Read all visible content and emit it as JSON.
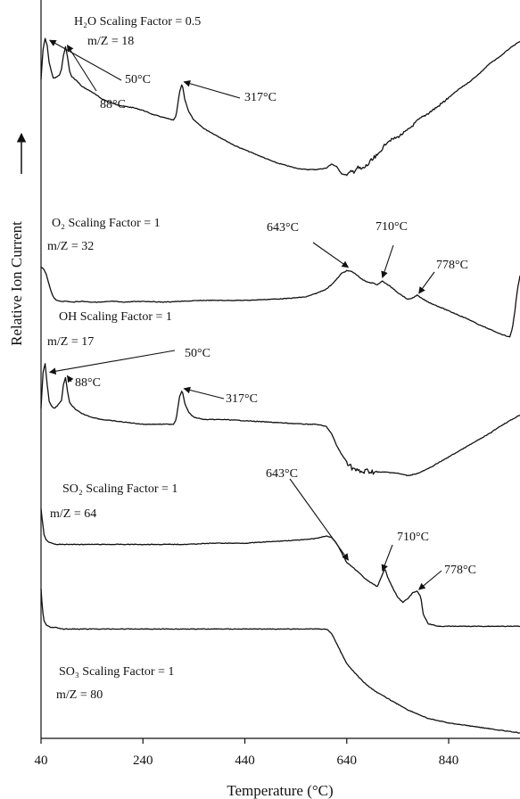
{
  "chart_data": {
    "type": "line",
    "xlabel": "Temperature (°C)",
    "ylabel": "Relative Ion Current",
    "xlim": [
      40,
      980
    ],
    "x_ticks": [
      "40",
      "240",
      "440",
      "640",
      "840"
    ],
    "grid": false,
    "series": [
      {
        "name": "H2O",
        "label_lines": [
          "H₂O Scaling Factor = 0.5",
          "m/Z = 18"
        ],
        "x": [
          40,
          44,
          48,
          52,
          56,
          60,
          64,
          68,
          72,
          76,
          80,
          84,
          88,
          92,
          96,
          100,
          110,
          120,
          140,
          160,
          180,
          200,
          220,
          240,
          260,
          280,
          300,
          305,
          312,
          317,
          322,
          330,
          340,
          360,
          380,
          400,
          420,
          440,
          460,
          480,
          500,
          520,
          540,
          560,
          580,
          600,
          610,
          620,
          630,
          640,
          650,
          660,
          670,
          680,
          700,
          720,
          740,
          760,
          780,
          800,
          820,
          840,
          860,
          880,
          900,
          920,
          940,
          960,
          980
        ],
        "values": [
          0.69,
          0.9,
          0.98,
          0.93,
          0.81,
          0.75,
          0.7,
          0.7,
          0.71,
          0.72,
          0.76,
          0.86,
          0.92,
          0.85,
          0.75,
          0.71,
          0.68,
          0.64,
          0.6,
          0.55,
          0.52,
          0.5,
          0.49,
          0.47,
          0.44,
          0.42,
          0.4,
          0.43,
          0.6,
          0.66,
          0.55,
          0.46,
          0.4,
          0.34,
          0.3,
          0.26,
          0.22,
          0.19,
          0.16,
          0.13,
          0.1,
          0.08,
          0.06,
          0.05,
          0.05,
          0.06,
          0.09,
          0.07,
          0.02,
          0.01,
          0.03,
          0.06,
          0.05,
          0.08,
          0.15,
          0.25,
          0.28,
          0.33,
          0.4,
          0.45,
          0.5,
          0.56,
          0.62,
          0.67,
          0.73,
          0.8,
          0.85,
          0.91,
          0.96
        ]
      },
      {
        "name": "O2",
        "label_lines": [
          "O₂ Scaling Factor = 1",
          "m/Z = 32"
        ],
        "x": [
          40,
          45,
          50,
          55,
          60,
          65,
          70,
          80,
          90,
          100,
          120,
          140,
          160,
          180,
          200,
          240,
          280,
          320,
          360,
          400,
          440,
          480,
          520,
          560,
          580,
          600,
          610,
          620,
          630,
          640,
          650,
          660,
          670,
          680,
          690,
          700,
          705,
          710,
          715,
          720,
          730,
          740,
          750,
          760,
          770,
          778,
          785,
          800,
          820,
          840,
          860,
          880,
          900,
          920,
          940,
          950,
          960,
          965,
          970,
          975,
          980
        ],
        "values": [
          0.8,
          0.78,
          0.72,
          0.62,
          0.52,
          0.45,
          0.42,
          0.41,
          0.41,
          0.4,
          0.41,
          0.4,
          0.4,
          0.41,
          0.4,
          0.41,
          0.4,
          0.41,
          0.42,
          0.42,
          0.42,
          0.43,
          0.44,
          0.46,
          0.5,
          0.55,
          0.6,
          0.66,
          0.73,
          0.76,
          0.75,
          0.71,
          0.66,
          0.63,
          0.62,
          0.6,
          0.62,
          0.64,
          0.62,
          0.6,
          0.56,
          0.51,
          0.47,
          0.43,
          0.45,
          0.48,
          0.45,
          0.4,
          0.35,
          0.3,
          0.25,
          0.2,
          0.14,
          0.09,
          0.04,
          0.02,
          0.0,
          0.1,
          0.3,
          0.55,
          0.7
        ]
      },
      {
        "name": "OH",
        "label_lines": [
          "OH Scaling Factor = 1",
          "m/Z = 17"
        ],
        "x": [
          40,
          44,
          48,
          52,
          56,
          60,
          64,
          68,
          72,
          76,
          80,
          84,
          88,
          92,
          96,
          100,
          110,
          120,
          140,
          160,
          180,
          200,
          240,
          280,
          300,
          305,
          312,
          317,
          322,
          330,
          340,
          360,
          400,
          440,
          480,
          520,
          560,
          580,
          600,
          610,
          620,
          630,
          640,
          650,
          660,
          670,
          680,
          700,
          720,
          740,
          760,
          780,
          800,
          820,
          840,
          860,
          880,
          900,
          920,
          940,
          960,
          980
        ],
        "values": [
          0.6,
          0.9,
          0.98,
          0.8,
          0.66,
          0.62,
          0.6,
          0.6,
          0.62,
          0.64,
          0.66,
          0.8,
          0.86,
          0.74,
          0.65,
          0.62,
          0.58,
          0.55,
          0.52,
          0.5,
          0.49,
          0.48,
          0.46,
          0.46,
          0.46,
          0.5,
          0.7,
          0.75,
          0.64,
          0.56,
          0.52,
          0.5,
          0.5,
          0.49,
          0.48,
          0.47,
          0.46,
          0.46,
          0.44,
          0.38,
          0.28,
          0.2,
          0.14,
          0.09,
          0.06,
          0.05,
          0.06,
          0.05,
          0.05,
          0.04,
          0.02,
          0.04,
          0.08,
          0.13,
          0.18,
          0.23,
          0.28,
          0.33,
          0.38,
          0.44,
          0.49,
          0.54
        ]
      },
      {
        "name": "SO2",
        "label_lines": [
          "SO₂ Scaling Factor = 1",
          "m/Z = 64"
        ],
        "x": [
          40,
          42,
          44,
          46,
          50,
          55,
          60,
          70,
          80,
          100,
          140,
          200,
          260,
          320,
          380,
          440,
          480,
          520,
          560,
          580,
          600,
          610,
          620,
          630,
          640,
          660,
          680,
          700,
          710,
          715,
          720,
          730,
          740,
          750,
          760,
          770,
          778,
          785,
          790,
          800,
          820,
          860,
          900,
          940,
          980
        ],
        "values": [
          1.0,
          0.92,
          0.85,
          0.78,
          0.74,
          0.72,
          0.71,
          0.7,
          0.7,
          0.7,
          0.7,
          0.7,
          0.7,
          0.7,
          0.71,
          0.71,
          0.72,
          0.73,
          0.74,
          0.75,
          0.77,
          0.76,
          0.71,
          0.63,
          0.55,
          0.48,
          0.4,
          0.35,
          0.45,
          0.5,
          0.43,
          0.34,
          0.26,
          0.22,
          0.25,
          0.3,
          0.31,
          0.27,
          0.12,
          0.04,
          0.02,
          0.02,
          0.02,
          0.02,
          0.02
        ]
      },
      {
        "name": "SO3",
        "label_lines": [
          "SO₃ Scaling Factor = 1",
          "m/Z = 80"
        ],
        "x": [
          40,
          42,
          44,
          46,
          50,
          55,
          60,
          70,
          80,
          100,
          140,
          200,
          260,
          320,
          380,
          440,
          500,
          560,
          600,
          610,
          620,
          630,
          640,
          660,
          680,
          700,
          720,
          740,
          760,
          780,
          800,
          840,
          880,
          920,
          960,
          980
        ],
        "values": [
          1.0,
          0.9,
          0.82,
          0.78,
          0.75,
          0.74,
          0.73,
          0.73,
          0.72,
          0.72,
          0.72,
          0.72,
          0.72,
          0.72,
          0.72,
          0.72,
          0.72,
          0.72,
          0.72,
          0.69,
          0.62,
          0.55,
          0.48,
          0.4,
          0.33,
          0.28,
          0.24,
          0.2,
          0.16,
          0.13,
          0.1,
          0.07,
          0.05,
          0.03,
          0.01,
          0.0
        ]
      }
    ],
    "annotations": [
      {
        "text": "50°C",
        "series": "H2O",
        "x": 50
      },
      {
        "text": "88°C",
        "series": "H2O",
        "x": 88
      },
      {
        "text": "317°C",
        "series": "H2O",
        "x": 317
      },
      {
        "text": "643°C",
        "series": "O2",
        "x": 643
      },
      {
        "text": "710°C",
        "series": "O2",
        "x": 710
      },
      {
        "text": "778°C",
        "series": "O2",
        "x": 778
      },
      {
        "text": "50°C",
        "series": "OH",
        "x": 50
      },
      {
        "text": "88°C",
        "series": "OH",
        "x": 88
      },
      {
        "text": "317°C",
        "series": "OH",
        "x": 317
      },
      {
        "text": "643°C",
        "series": "SO2",
        "x": 643
      },
      {
        "text": "710°C",
        "series": "SO2",
        "x": 710
      },
      {
        "text": "778°C",
        "series": "SO2",
        "x": 778
      }
    ]
  }
}
